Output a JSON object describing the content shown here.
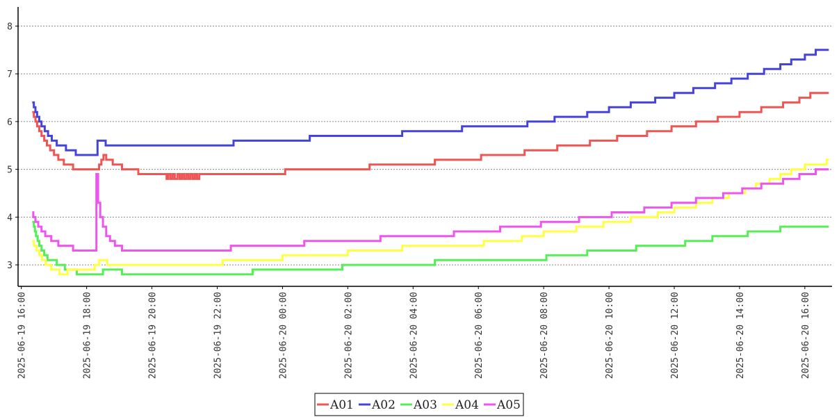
{
  "chart_data": {
    "type": "line",
    "title": "",
    "xlabel": "",
    "ylabel": "",
    "x_type": "datetime",
    "xlim": [
      "2025-06-19 15:54",
      "2025-06-20 16:50"
    ],
    "ylim": [
      2.55,
      8.4
    ],
    "y_ticks": [
      3,
      4,
      5,
      6,
      7,
      8
    ],
    "x_ticks": [
      "2025-06-19 16:00",
      "2025-06-19 18:00",
      "2025-06-19 20:00",
      "2025-06-19 22:00",
      "2025-06-20 00:00",
      "2025-06-20 02:00",
      "2025-06-20 04:00",
      "2025-06-20 06:00",
      "2025-06-20 08:00",
      "2025-06-20 10:00",
      "2025-06-20 12:00",
      "2025-06-20 14:00",
      "2025-06-20 16:00"
    ],
    "grid": "horizontal dashed",
    "legend_position": "bottom-center",
    "series": [
      {
        "name": "A01",
        "color": "#ee5555",
        "points": [
          [
            "2025-06-19 16:20",
            6.2
          ],
          [
            "2025-06-19 16:23",
            6.1
          ],
          [
            "2025-06-19 16:26",
            6.0
          ],
          [
            "2025-06-19 16:29",
            5.9
          ],
          [
            "2025-06-19 16:33",
            5.8
          ],
          [
            "2025-06-19 16:37",
            5.7
          ],
          [
            "2025-06-19 16:42",
            5.6
          ],
          [
            "2025-06-19 16:47",
            5.5
          ],
          [
            "2025-06-19 16:53",
            5.4
          ],
          [
            "2025-06-19 17:00",
            5.3
          ],
          [
            "2025-06-19 17:08",
            5.2
          ],
          [
            "2025-06-19 17:18",
            5.1
          ],
          [
            "2025-06-19 17:35",
            5.0
          ],
          [
            "2025-06-19 18:23",
            5.1
          ],
          [
            "2025-06-19 18:27",
            5.2
          ],
          [
            "2025-06-19 18:31",
            5.3
          ],
          [
            "2025-06-19 18:36",
            5.2
          ],
          [
            "2025-06-19 18:48",
            5.1
          ],
          [
            "2025-06-19 19:05",
            5.0
          ],
          [
            "2025-06-19 19:35",
            4.9
          ],
          [
            "2025-06-19 20:27",
            4.8
          ],
          [
            "2025-06-19 20:30",
            4.9
          ],
          [
            "2025-06-19 20:34",
            4.8
          ],
          [
            "2025-06-19 20:38",
            4.9
          ],
          [
            "2025-06-19 20:42",
            4.8
          ],
          [
            "2025-06-19 20:47",
            4.9
          ],
          [
            "2025-06-19 20:51",
            4.8
          ],
          [
            "2025-06-19 20:55",
            4.9
          ],
          [
            "2025-06-19 20:59",
            4.8
          ],
          [
            "2025-06-19 21:03",
            4.9
          ],
          [
            "2025-06-19 21:07",
            4.8
          ],
          [
            "2025-06-19 21:11",
            4.9
          ],
          [
            "2025-06-19 21:15",
            4.8
          ],
          [
            "2025-06-19 21:19",
            4.9
          ],
          [
            "2025-06-19 21:23",
            4.8
          ],
          [
            "2025-06-19 21:27",
            4.9
          ],
          [
            "2025-06-20 00:05",
            5.0
          ],
          [
            "2025-06-20 02:40",
            5.1
          ],
          [
            "2025-06-20 04:40",
            5.2
          ],
          [
            "2025-06-20 06:05",
            5.3
          ],
          [
            "2025-06-20 07:25",
            5.4
          ],
          [
            "2025-06-20 08:25",
            5.5
          ],
          [
            "2025-06-20 09:25",
            5.6
          ],
          [
            "2025-06-20 10:15",
            5.7
          ],
          [
            "2025-06-20 11:10",
            5.8
          ],
          [
            "2025-06-20 11:55",
            5.9
          ],
          [
            "2025-06-20 12:40",
            6.0
          ],
          [
            "2025-06-20 13:20",
            6.1
          ],
          [
            "2025-06-20 14:00",
            6.2
          ],
          [
            "2025-06-20 14:40",
            6.3
          ],
          [
            "2025-06-20 15:20",
            6.4
          ],
          [
            "2025-06-20 15:50",
            6.5
          ],
          [
            "2025-06-20 16:10",
            6.6
          ],
          [
            "2025-06-20 16:44",
            6.6
          ]
        ]
      },
      {
        "name": "A02",
        "color": "#4444dd",
        "points": [
          [
            "2025-06-19 16:20",
            6.4
          ],
          [
            "2025-06-19 16:23",
            6.3
          ],
          [
            "2025-06-19 16:26",
            6.2
          ],
          [
            "2025-06-19 16:29",
            6.1
          ],
          [
            "2025-06-19 16:33",
            6.0
          ],
          [
            "2025-06-19 16:37",
            5.9
          ],
          [
            "2025-06-19 16:43",
            5.8
          ],
          [
            "2025-06-19 16:49",
            5.7
          ],
          [
            "2025-06-19 16:56",
            5.6
          ],
          [
            "2025-06-19 17:05",
            5.5
          ],
          [
            "2025-06-19 17:22",
            5.4
          ],
          [
            "2025-06-19 17:40",
            5.3
          ],
          [
            "2025-06-19 18:20",
            5.6
          ],
          [
            "2025-06-19 18:35",
            5.5
          ],
          [
            "2025-06-19 22:30",
            5.6
          ],
          [
            "2025-06-20 00:50",
            5.7
          ],
          [
            "2025-06-20 03:40",
            5.8
          ],
          [
            "2025-06-20 05:30",
            5.9
          ],
          [
            "2025-06-20 07:30",
            6.0
          ],
          [
            "2025-06-20 08:20",
            6.1
          ],
          [
            "2025-06-20 09:20",
            6.2
          ],
          [
            "2025-06-20 10:00",
            6.3
          ],
          [
            "2025-06-20 10:40",
            6.4
          ],
          [
            "2025-06-20 11:25",
            6.5
          ],
          [
            "2025-06-20 12:00",
            6.6
          ],
          [
            "2025-06-20 12:35",
            6.7
          ],
          [
            "2025-06-20 13:15",
            6.8
          ],
          [
            "2025-06-20 13:45",
            6.9
          ],
          [
            "2025-06-20 14:15",
            7.0
          ],
          [
            "2025-06-20 14:45",
            7.1
          ],
          [
            "2025-06-20 15:15",
            7.2
          ],
          [
            "2025-06-20 15:35",
            7.3
          ],
          [
            "2025-06-20 16:00",
            7.4
          ],
          [
            "2025-06-20 16:20",
            7.5
          ],
          [
            "2025-06-20 16:44",
            7.5
          ]
        ]
      },
      {
        "name": "A03",
        "color": "#55ee55",
        "points": [
          [
            "2025-06-19 16:20",
            3.9
          ],
          [
            "2025-06-19 16:23",
            3.8
          ],
          [
            "2025-06-19 16:25",
            3.7
          ],
          [
            "2025-06-19 16:27",
            3.6
          ],
          [
            "2025-06-19 16:30",
            3.5
          ],
          [
            "2025-06-19 16:33",
            3.4
          ],
          [
            "2025-06-19 16:37",
            3.3
          ],
          [
            "2025-06-19 16:42",
            3.2
          ],
          [
            "2025-06-19 16:48",
            3.1
          ],
          [
            "2025-06-19 17:05",
            3.0
          ],
          [
            "2025-06-19 17:20",
            2.9
          ],
          [
            "2025-06-19 17:42",
            2.8
          ],
          [
            "2025-06-19 18:30",
            2.9
          ],
          [
            "2025-06-19 19:05",
            2.8
          ],
          [
            "2025-06-19 23:05",
            2.9
          ],
          [
            "2025-06-20 01:50",
            3.0
          ],
          [
            "2025-06-20 04:40",
            3.1
          ],
          [
            "2025-06-20 08:05",
            3.2
          ],
          [
            "2025-06-20 09:20",
            3.3
          ],
          [
            "2025-06-20 10:50",
            3.4
          ],
          [
            "2025-06-20 12:20",
            3.5
          ],
          [
            "2025-06-20 13:10",
            3.6
          ],
          [
            "2025-06-20 14:15",
            3.7
          ],
          [
            "2025-06-20 15:15",
            3.8
          ],
          [
            "2025-06-20 16:44",
            3.8
          ]
        ]
      },
      {
        "name": "A04",
        "color": "#ffff44",
        "points": [
          [
            "2025-06-19 16:20",
            3.5
          ],
          [
            "2025-06-19 16:23",
            3.4
          ],
          [
            "2025-06-19 16:28",
            3.3
          ],
          [
            "2025-06-19 16:33",
            3.2
          ],
          [
            "2025-06-19 16:38",
            3.1
          ],
          [
            "2025-06-19 16:45",
            3.0
          ],
          [
            "2025-06-19 16:55",
            2.9
          ],
          [
            "2025-06-19 17:10",
            2.8
          ],
          [
            "2025-06-19 17:25",
            2.9
          ],
          [
            "2025-06-19 18:15",
            3.0
          ],
          [
            "2025-06-19 18:23",
            3.1
          ],
          [
            "2025-06-19 18:38",
            3.0
          ],
          [
            "2025-06-19 22:10",
            3.1
          ],
          [
            "2025-06-20 00:00",
            3.2
          ],
          [
            "2025-06-20 02:00",
            3.3
          ],
          [
            "2025-06-20 03:40",
            3.4
          ],
          [
            "2025-06-20 06:10",
            3.5
          ],
          [
            "2025-06-20 07:20",
            3.6
          ],
          [
            "2025-06-20 08:00",
            3.7
          ],
          [
            "2025-06-20 09:00",
            3.8
          ],
          [
            "2025-06-20 09:50",
            3.9
          ],
          [
            "2025-06-20 10:40",
            4.0
          ],
          [
            "2025-06-20 11:30",
            4.1
          ],
          [
            "2025-06-20 12:00",
            4.2
          ],
          [
            "2025-06-20 12:40",
            4.3
          ],
          [
            "2025-06-20 13:10",
            4.4
          ],
          [
            "2025-06-20 13:40",
            4.5
          ],
          [
            "2025-06-20 14:10",
            4.6
          ],
          [
            "2025-06-20 14:30",
            4.7
          ],
          [
            "2025-06-20 14:55",
            4.8
          ],
          [
            "2025-06-20 15:15",
            4.9
          ],
          [
            "2025-06-20 15:35",
            5.0
          ],
          [
            "2025-06-20 16:00",
            5.1
          ],
          [
            "2025-06-20 16:40",
            5.2
          ],
          [
            "2025-06-20 16:44",
            5.2
          ]
        ]
      },
      {
        "name": "A05",
        "color": "#ee55ee",
        "points": [
          [
            "2025-06-19 16:20",
            4.1
          ],
          [
            "2025-06-19 16:22",
            4.0
          ],
          [
            "2025-06-19 16:26",
            3.9
          ],
          [
            "2025-06-19 16:31",
            3.8
          ],
          [
            "2025-06-19 16:37",
            3.7
          ],
          [
            "2025-06-19 16:44",
            3.6
          ],
          [
            "2025-06-19 16:55",
            3.5
          ],
          [
            "2025-06-19 17:08",
            3.4
          ],
          [
            "2025-06-19 17:35",
            3.3
          ],
          [
            "2025-06-19 18:15",
            3.3
          ],
          [
            "2025-06-19 18:18",
            4.9
          ],
          [
            "2025-06-19 18:21",
            4.3
          ],
          [
            "2025-06-19 18:25",
            4.0
          ],
          [
            "2025-06-19 18:30",
            3.8
          ],
          [
            "2025-06-19 18:36",
            3.6
          ],
          [
            "2025-06-19 18:43",
            3.5
          ],
          [
            "2025-06-19 18:52",
            3.4
          ],
          [
            "2025-06-19 19:05",
            3.3
          ],
          [
            "2025-06-19 22:25",
            3.4
          ],
          [
            "2025-06-20 00:40",
            3.5
          ],
          [
            "2025-06-20 03:00",
            3.6
          ],
          [
            "2025-06-20 05:15",
            3.7
          ],
          [
            "2025-06-20 06:40",
            3.8
          ],
          [
            "2025-06-20 07:55",
            3.9
          ],
          [
            "2025-06-20 09:05",
            4.0
          ],
          [
            "2025-06-20 10:05",
            4.1
          ],
          [
            "2025-06-20 11:05",
            4.2
          ],
          [
            "2025-06-20 11:55",
            4.3
          ],
          [
            "2025-06-20 12:40",
            4.4
          ],
          [
            "2025-06-20 13:30",
            4.5
          ],
          [
            "2025-06-20 14:05",
            4.6
          ],
          [
            "2025-06-20 14:40",
            4.7
          ],
          [
            "2025-06-20 15:20",
            4.8
          ],
          [
            "2025-06-20 15:50",
            4.9
          ],
          [
            "2025-06-20 16:20",
            5.0
          ],
          [
            "2025-06-20 16:44",
            5.0
          ]
        ]
      }
    ]
  }
}
